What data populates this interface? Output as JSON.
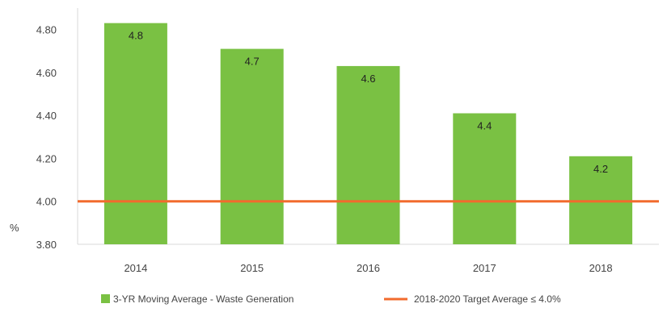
{
  "chart_data": {
    "type": "bar",
    "categories": [
      "2014",
      "2015",
      "2016",
      "2017",
      "2018"
    ],
    "series": [
      {
        "name": "3-YR Moving Average - Waste Generation",
        "values": [
          4.83,
          4.71,
          4.63,
          4.41,
          4.21
        ],
        "data_labels": [
          "4.8",
          "4.7",
          "4.6",
          "4.4",
          "4.2"
        ],
        "color": "#7ac143"
      }
    ],
    "reference_line": {
      "name": "2018-2020 Target Average ≤ 4.0%",
      "value": 4.0,
      "color": "#f26b2d"
    },
    "ylabel": "%",
    "ylim": [
      3.8,
      4.9
    ],
    "yticks": [
      3.8,
      4.0,
      4.2,
      4.4,
      4.6,
      4.8
    ],
    "ytick_labels": [
      "3.80",
      "4.00",
      "4.20",
      "4.40",
      "4.60",
      "4.80"
    ],
    "grid": false,
    "legend_position": "bottom"
  }
}
